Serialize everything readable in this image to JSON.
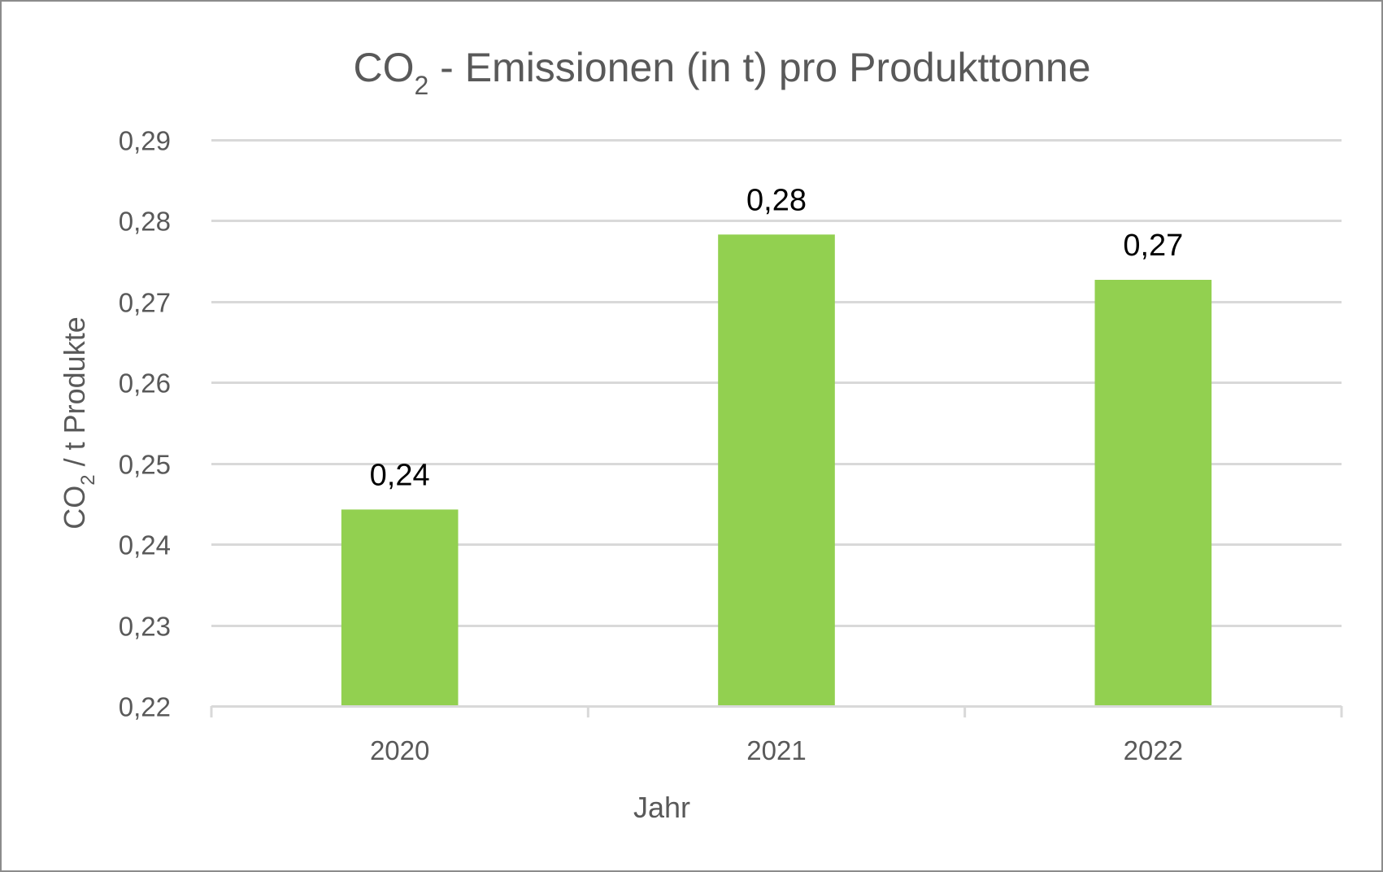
{
  "chart_data": {
    "type": "bar",
    "title": {
      "prefix": "CO",
      "sub": "2",
      "suffix": " - Emissionen (in t) pro Produkttonne"
    },
    "ylabel": {
      "prefix": "CO",
      "sub": "2",
      "suffix": " / t  Produkte"
    },
    "xlabel": "Jahr",
    "categories": [
      "2020",
      "2021",
      "2022"
    ],
    "values": [
      0.2443,
      0.2783,
      0.2727
    ],
    "data_labels": [
      "0,24",
      "0,28",
      "0,27"
    ],
    "ylim": [
      0.22,
      0.29
    ],
    "yticks": [
      0.22,
      0.23,
      0.24,
      0.25,
      0.26,
      0.27,
      0.28,
      0.29
    ],
    "ytick_labels": [
      "0,22",
      "0,23",
      "0,24",
      "0,25",
      "0,26",
      "0,27",
      "0,28",
      "0,29"
    ],
    "grid": true,
    "legend": "none",
    "colors": {
      "bar": "#92d050",
      "grid": "#d9d9d9",
      "text": "#595959",
      "data_label": "#000000",
      "border": "#8c8c8c"
    }
  }
}
